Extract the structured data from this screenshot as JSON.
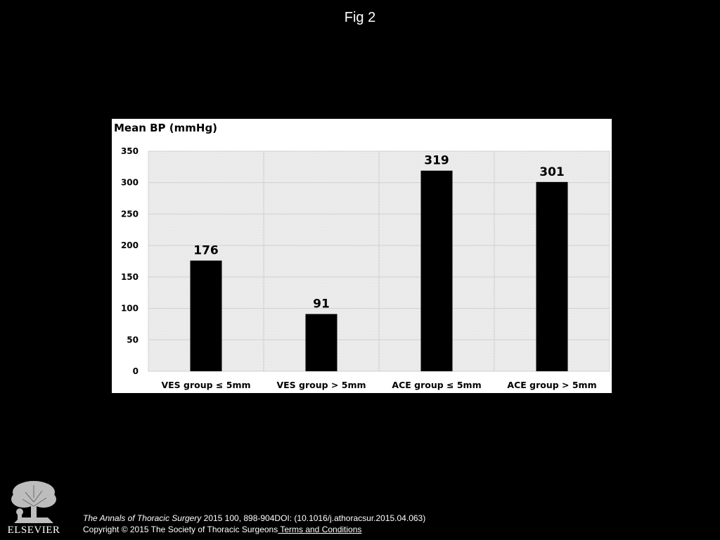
{
  "figure": {
    "title": "Fig 2"
  },
  "chart_data": {
    "type": "bar",
    "title": "",
    "ylabel": "Mean BP (mmHg)",
    "xlabel": "",
    "categories": [
      "VES group ≤ 5mm",
      "VES group > 5mm",
      "ACE group ≤ 5mm",
      "ACE group > 5mm"
    ],
    "values": [
      176,
      91,
      319,
      301
    ],
    "data_labels": [
      "176",
      "91",
      "319",
      "301"
    ],
    "ylim": [
      0,
      350
    ],
    "yticks": [
      0,
      50,
      100,
      150,
      200,
      250,
      300,
      350
    ],
    "grid": true,
    "legend": "none",
    "bar_color": "#000000",
    "plot_background": "#eeeeee"
  },
  "footer": {
    "journal": "The Annals of Thoracic Surgery",
    "details": " 2015 100, 898-904DOI: (10.1016/j.athoracsur.2015.04.063)",
    "copyright": "Copyright © 2015 The Society of Thoracic Surgeons",
    "terms": " Terms and Conditions"
  },
  "logo": {
    "text": "ELSEVIER",
    "icon": "elsevier-tree-logo"
  }
}
